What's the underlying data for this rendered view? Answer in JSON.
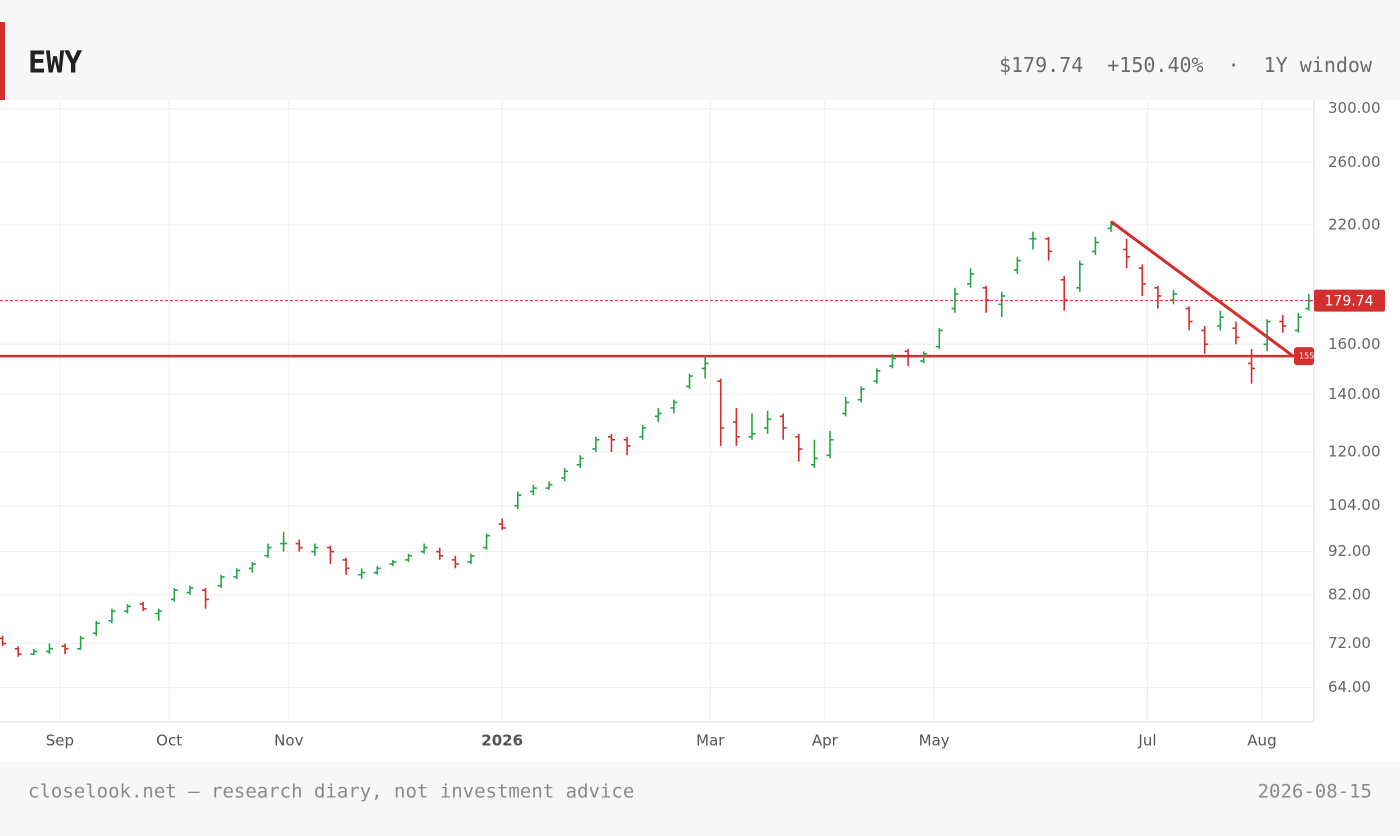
{
  "header": {
    "symbol": "EWY",
    "price": "$179.74",
    "change": "+150.40%",
    "separator": "·",
    "window": "1Y window"
  },
  "footer": {
    "source": "closelook.net — research diary, not investment advice",
    "date": "2026-08-15"
  },
  "chart_data": {
    "type": "ohlc",
    "log_scale": true,
    "grid": true,
    "up_color": "#27a546",
    "down_color": "#d32f2f",
    "line_color": "#d32f2f",
    "xlim": [
      -0.5,
      252
    ],
    "ylim": [
      58.4,
      307
    ],
    "xticks": [
      {
        "value": 11,
        "label": "Sep"
      },
      {
        "value": 32,
        "label": "Oct"
      },
      {
        "value": 55,
        "label": "Nov"
      },
      {
        "value": 96,
        "label": "2026"
      },
      {
        "value": 136,
        "label": "Mar"
      },
      {
        "value": 158,
        "label": "Apr"
      },
      {
        "value": 179,
        "label": "May"
      },
      {
        "value": 220,
        "label": "Jul"
      },
      {
        "value": 242,
        "label": "Aug"
      }
    ],
    "yticks": [
      {
        "value": 64,
        "label": "64.00"
      },
      {
        "value": 72,
        "label": "72.00"
      },
      {
        "value": 82,
        "label": "82.00"
      },
      {
        "value": 92,
        "label": "92.00"
      },
      {
        "value": 104,
        "label": "104.00"
      },
      {
        "value": 120,
        "label": "120.00"
      },
      {
        "value": 140,
        "label": "140.00"
      },
      {
        "value": 160,
        "label": "160.00"
      },
      {
        "value": 220,
        "label": "220.00"
      },
      {
        "value": 260,
        "label": "260.00"
      },
      {
        "value": 300,
        "label": "300.00"
      }
    ],
    "x": [
      0,
      3,
      6,
      9,
      12,
      15,
      18,
      21,
      24,
      27,
      30,
      33,
      36,
      39,
      42,
      45,
      48,
      51,
      54,
      57,
      60,
      63,
      66,
      69,
      72,
      75,
      78,
      81,
      84,
      87,
      90,
      93,
      96,
      99,
      102,
      105,
      108,
      111,
      114,
      117,
      120,
      123,
      126,
      129,
      132,
      135,
      138,
      141,
      144,
      147,
      150,
      153,
      156,
      159,
      162,
      165,
      168,
      171,
      174,
      177,
      180,
      183,
      186,
      189,
      192,
      195,
      198,
      201,
      204,
      207,
      210,
      213,
      216,
      219,
      222,
      225,
      228,
      231,
      234,
      237,
      240,
      243,
      246,
      249,
      251
    ],
    "open": [
      73,
      71,
      70,
      70.5,
      71.5,
      71,
      74,
      76.5,
      78.5,
      80,
      78,
      81,
      82.5,
      83,
      84,
      86,
      88,
      91,
      94,
      94,
      92,
      93,
      90,
      86.5,
      87,
      89,
      90,
      92,
      92,
      90,
      89.5,
      93,
      99,
      104,
      108,
      109,
      112,
      116,
      121,
      125,
      124,
      125,
      132,
      135,
      143,
      150,
      145,
      130,
      125,
      128,
      132,
      125,
      116,
      119,
      133,
      138,
      145,
      151,
      157,
      153,
      159,
      176,
      188,
      186,
      178,
      195,
      212,
      212,
      190,
      186,
      205,
      218,
      206,
      196,
      186,
      180,
      176,
      166,
      168,
      167,
      152,
      160,
      170,
      166,
      176
    ],
    "high": [
      73.5,
      71.5,
      71,
      72,
      72,
      73.5,
      76.5,
      79,
      80,
      80.5,
      79,
      83.5,
      84,
      83.5,
      86.5,
      88,
      89.5,
      94,
      97,
      95,
      94,
      93.5,
      90.5,
      88,
      88.5,
      90,
      91.5,
      94,
      93,
      91,
      91.5,
      96.5,
      100.5,
      108,
      110,
      111,
      115,
      119,
      125,
      126,
      125,
      129,
      135,
      138,
      148,
      155,
      146,
      135,
      133,
      134,
      133,
      126,
      124,
      127,
      139,
      143,
      150,
      156,
      158,
      157,
      167,
      186,
      196,
      187,
      184,
      202,
      216,
      213,
      192,
      200,
      213,
      222,
      212,
      198,
      187,
      185,
      177,
      168,
      175,
      170,
      158,
      171,
      173,
      174,
      183
    ],
    "low": [
      71.5,
      69.5,
      69.8,
      70,
      70,
      70.8,
      73.5,
      76,
      78,
      78.5,
      76.5,
      80.5,
      82,
      79,
      83.5,
      85.5,
      87,
      90.5,
      92,
      92,
      91,
      89,
      86.5,
      85.5,
      86.5,
      88.5,
      89.5,
      91.5,
      90,
      88,
      89,
      92.5,
      97.5,
      103,
      107,
      108.5,
      111,
      115,
      120,
      120,
      119,
      124,
      130,
      133,
      142,
      146,
      122,
      122,
      124,
      126,
      124,
      117,
      115,
      118,
      132,
      137,
      144,
      150,
      151,
      152,
      158,
      174,
      186,
      174,
      172,
      193,
      206,
      200,
      175,
      184,
      203,
      216,
      196,
      182,
      176,
      178,
      166,
      156,
      166,
      160,
      144,
      157,
      165,
      165,
      175
    ],
    "close": [
      72,
      70,
      70.5,
      71,
      71,
      73,
      76,
      78.5,
      79.5,
      79,
      78.5,
      83,
      83.5,
      81,
      86,
      87.5,
      89,
      93,
      94,
      93,
      93,
      92,
      88,
      87,
      88,
      89.5,
      91,
      93,
      91,
      89,
      91,
      96,
      98,
      107,
      109,
      110,
      114,
      118,
      124,
      124,
      122,
      128,
      133,
      137,
      147,
      152,
      128,
      125,
      126,
      131,
      128,
      121,
      118,
      124,
      137,
      142,
      149,
      154,
      155,
      156,
      166,
      183,
      193,
      180,
      182,
      200,
      212,
      205,
      180,
      198,
      210,
      220,
      202,
      188,
      182,
      183,
      170,
      160,
      172,
      163,
      150,
      170,
      168,
      172,
      179.74
    ],
    "support_level": 155,
    "trendline": {
      "x": [
        213,
        248
      ],
      "y": [
        222,
        155
      ]
    }
  }
}
